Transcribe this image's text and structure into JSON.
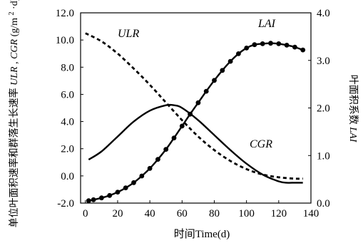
{
  "chart_data": {
    "type": "line",
    "xlabel": "时间Time(d)",
    "ylabel_left_parts": [
      "单位叶面积速率和群落生长速率",
      "ULR",
      ", ",
      "CGR",
      " (g/m",
      "2",
      "·d)"
    ],
    "ylabel_right_parts": [
      "叶面积系数",
      "LAI"
    ],
    "xlim": [
      -3,
      140
    ],
    "ylim_left": [
      -2.0,
      12.0
    ],
    "ylim_right": [
      0.0,
      4.0
    ],
    "x_ticks": [
      "0",
      "20",
      "40",
      "60",
      "80",
      "100",
      "120",
      "140"
    ],
    "y_left_ticks": [
      "-2.0",
      "0.0",
      "2.0",
      "4.0",
      "6.0",
      "8.0",
      "10.0",
      "12.0"
    ],
    "y_right_ticks": [
      "0.0",
      "1.0",
      "2.0",
      "3.0",
      "4.0"
    ],
    "annotations": [
      "ULR",
      "LAI",
      "CGR"
    ],
    "series": [
      {
        "name": "ULR",
        "axis": "left",
        "style": "dashed",
        "x": [
          0,
          10,
          20,
          30,
          40,
          50,
          60,
          70,
          80,
          90,
          100,
          110,
          120,
          130,
          135
        ],
        "y": [
          10.5,
          9.9,
          9.0,
          7.9,
          6.7,
          5.4,
          4.1,
          2.9,
          1.9,
          1.1,
          0.5,
          0.1,
          -0.1,
          -0.2,
          -0.2
        ]
      },
      {
        "name": "CGR",
        "axis": "left",
        "style": "solid",
        "x": [
          2,
          10,
          20,
          30,
          40,
          50,
          55,
          60,
          70,
          80,
          90,
          100,
          110,
          120,
          125,
          130,
          135
        ],
        "y": [
          1.2,
          1.8,
          2.9,
          4.0,
          4.8,
          5.2,
          5.2,
          5.0,
          4.1,
          3.0,
          1.9,
          0.9,
          0.1,
          -0.4,
          -0.5,
          -0.5,
          -0.5
        ]
      },
      {
        "name": "LAI",
        "axis": "right",
        "style": "solid-markers",
        "x": [
          2,
          5,
          10,
          15,
          20,
          25,
          30,
          35,
          40,
          45,
          50,
          55,
          60,
          65,
          70,
          75,
          80,
          85,
          90,
          95,
          100,
          105,
          110,
          115,
          120,
          125,
          130,
          135
        ],
        "y": [
          0.05,
          0.07,
          0.11,
          0.16,
          0.23,
          0.32,
          0.43,
          0.57,
          0.73,
          0.92,
          1.13,
          1.37,
          1.62,
          1.87,
          2.11,
          2.35,
          2.58,
          2.79,
          2.98,
          3.14,
          3.26,
          3.33,
          3.35,
          3.36,
          3.35,
          3.32,
          3.28,
          3.22
        ]
      }
    ]
  }
}
